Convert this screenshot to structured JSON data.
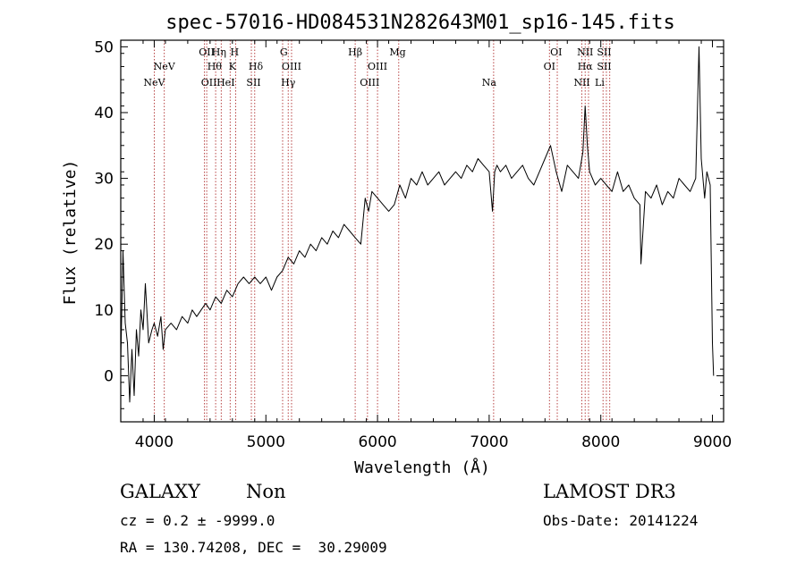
{
  "chart_data": {
    "type": "line",
    "title": "spec-57016-HD084531N282643M01_sp16-145.fits",
    "xlabel": "Wavelength (Å)",
    "ylabel": "Flux (relative)",
    "xlim": [
      3700,
      9100
    ],
    "ylim": [
      -7,
      51
    ],
    "xticks": [
      4000,
      5000,
      6000,
      7000,
      8000,
      9000
    ],
    "yticks": [
      0,
      10,
      20,
      30,
      40,
      50
    ],
    "grid": false,
    "series": [
      {
        "name": "spectrum",
        "x": [
          3700,
          3720,
          3740,
          3760,
          3780,
          3800,
          3820,
          3840,
          3860,
          3880,
          3900,
          3920,
          3950,
          3980,
          4000,
          4030,
          4060,
          4080,
          4100,
          4150,
          4200,
          4250,
          4300,
          4340,
          4380,
          4420,
          4460,
          4500,
          4550,
          4600,
          4650,
          4700,
          4750,
          4800,
          4850,
          4900,
          4950,
          5000,
          5050,
          5100,
          5150,
          5200,
          5250,
          5300,
          5350,
          5400,
          5450,
          5500,
          5550,
          5600,
          5650,
          5700,
          5750,
          5800,
          5850,
          5890,
          5920,
          5950,
          6000,
          6050,
          6100,
          6150,
          6200,
          6250,
          6300,
          6350,
          6400,
          6450,
          6500,
          6550,
          6600,
          6650,
          6700,
          6750,
          6800,
          6850,
          6900,
          6950,
          7000,
          7030,
          7050,
          7070,
          7100,
          7150,
          7200,
          7250,
          7300,
          7350,
          7400,
          7450,
          7500,
          7550,
          7600,
          7650,
          7700,
          7750,
          7800,
          7840,
          7860,
          7880,
          7900,
          7950,
          8000,
          8050,
          8100,
          8150,
          8200,
          8250,
          8300,
          8350,
          8360,
          8400,
          8450,
          8500,
          8550,
          8600,
          8650,
          8700,
          8750,
          8800,
          8850,
          8880,
          8900,
          8930,
          8950,
          8980,
          9000,
          9010
        ],
        "y": [
          2,
          19,
          8,
          5,
          -4,
          4,
          -3,
          7,
          3,
          10,
          7,
          14,
          5,
          7,
          8,
          6,
          9,
          4,
          7,
          8,
          7,
          9,
          8,
          10,
          9,
          10,
          11,
          10,
          12,
          11,
          13,
          12,
          14,
          15,
          14,
          15,
          14,
          15,
          13,
          15,
          16,
          18,
          17,
          19,
          18,
          20,
          19,
          21,
          20,
          22,
          21,
          23,
          22,
          21,
          20,
          27,
          25,
          28,
          27,
          26,
          25,
          26,
          29,
          27,
          30,
          29,
          31,
          29,
          30,
          31,
          29,
          30,
          31,
          30,
          32,
          31,
          33,
          32,
          31,
          25,
          31,
          32,
          31,
          32,
          30,
          31,
          32,
          30,
          29,
          31,
          33,
          35,
          31,
          28,
          32,
          31,
          30,
          34,
          41,
          35,
          31,
          29,
          30,
          29,
          28,
          31,
          28,
          29,
          27,
          26,
          17,
          28,
          27,
          29,
          26,
          28,
          27,
          30,
          29,
          28,
          30,
          50,
          33,
          27,
          31,
          29,
          5,
          0
        ]
      }
    ],
    "lines": [
      {
        "x": 4000
      },
      {
        "x": 4090
      },
      {
        "x": 4450
      },
      {
        "x": 4470
      },
      {
        "x": 4550
      },
      {
        "x": 4600
      },
      {
        "x": 4680
      },
      {
        "x": 4730
      },
      {
        "x": 4870
      },
      {
        "x": 4900
      },
      {
        "x": 5150
      },
      {
        "x": 5200
      },
      {
        "x": 5230
      },
      {
        "x": 5800
      },
      {
        "x": 5910
      },
      {
        "x": 6000
      },
      {
        "x": 6190
      },
      {
        "x": 7040
      },
      {
        "x": 7540
      },
      {
        "x": 7610
      },
      {
        "x": 7830
      },
      {
        "x": 7860
      },
      {
        "x": 7890
      },
      {
        "x": 8020
      },
      {
        "x": 8050
      },
      {
        "x": 8080
      }
    ],
    "line_labels": [
      {
        "x": 4000,
        "text": "NeV",
        "row": 3
      },
      {
        "x": 4090,
        "text": "NeV",
        "row": 2
      },
      {
        "x": 4470,
        "text": "OII",
        "row": 1
      },
      {
        "x": 4580,
        "text": "Hη",
        "row": 1
      },
      {
        "x": 4720,
        "text": "H",
        "row": 1
      },
      {
        "x": 4540,
        "text": "Hθ",
        "row": 2
      },
      {
        "x": 4700,
        "text": "K",
        "row": 2
      },
      {
        "x": 4910,
        "text": "Hδ",
        "row": 2
      },
      {
        "x": 4490,
        "text": "OII",
        "row": 3
      },
      {
        "x": 4640,
        "text": "HeI",
        "row": 3
      },
      {
        "x": 4890,
        "text": "SII",
        "row": 3
      },
      {
        "x": 5160,
        "text": "G",
        "row": 1
      },
      {
        "x": 5230,
        "text": "OIII",
        "row": 2
      },
      {
        "x": 5200,
        "text": "Hγ",
        "row": 3
      },
      {
        "x": 5800,
        "text": "Hβ",
        "row": 1
      },
      {
        "x": 6180,
        "text": "Mg",
        "row": 1
      },
      {
        "x": 6000,
        "text": "OIII",
        "row": 2
      },
      {
        "x": 5930,
        "text": "OIII",
        "row": 3
      },
      {
        "x": 7000,
        "text": "Na",
        "row": 3
      },
      {
        "x": 7600,
        "text": "OI",
        "row": 1
      },
      {
        "x": 7540,
        "text": "OI",
        "row": 2
      },
      {
        "x": 7860,
        "text": "NII",
        "row": 1
      },
      {
        "x": 8030,
        "text": "SII",
        "row": 1
      },
      {
        "x": 7860,
        "text": "Hα",
        "row": 2
      },
      {
        "x": 8030,
        "text": "SII",
        "row": 2
      },
      {
        "x": 7830,
        "text": "NII",
        "row": 3
      },
      {
        "x": 7990,
        "text": "Li",
        "row": 3
      }
    ]
  },
  "info": {
    "object_class": "GALAXY",
    "subclass": "Non",
    "cz_line": "cz = 0.2 ± -9999.0",
    "radec_line": "RA = 130.74208, DEC =  30.29009",
    "survey": "LAMOST DR3",
    "obs_date": "Obs-Date: 20141224"
  }
}
